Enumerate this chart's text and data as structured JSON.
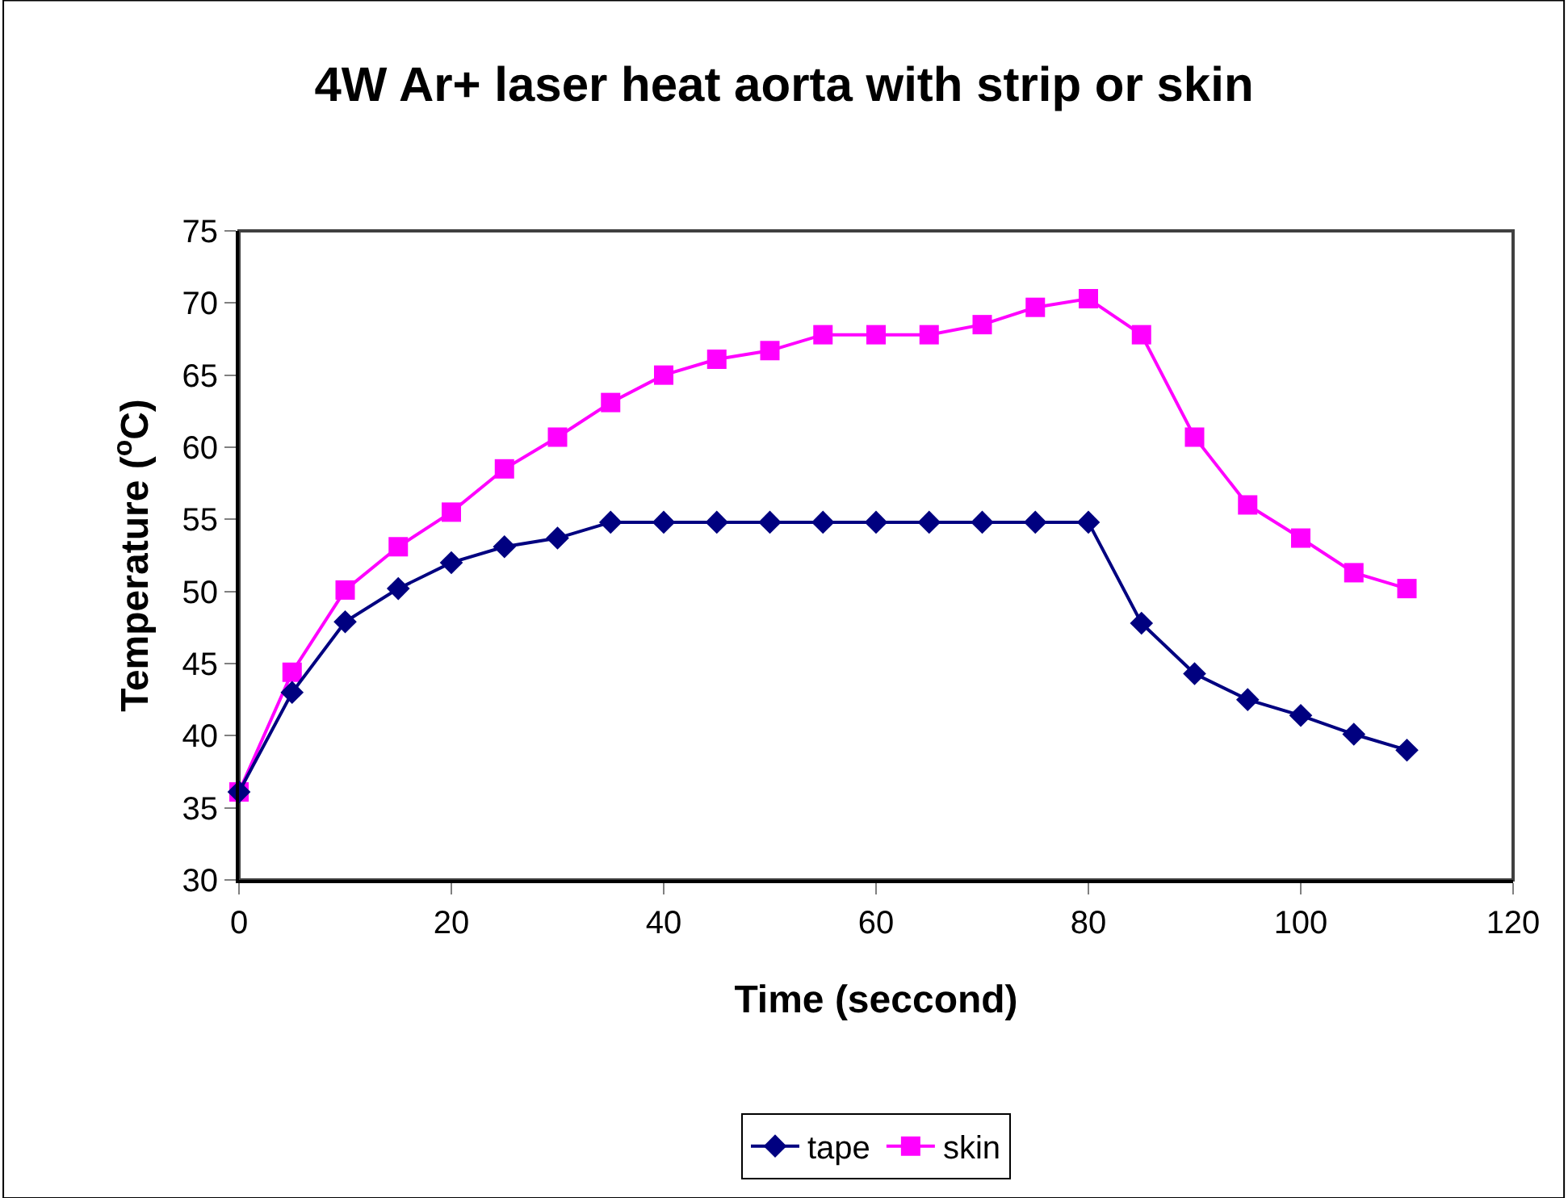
{
  "chart_data": {
    "type": "line",
    "title": "4W Ar+ laser heat aorta with strip or skin",
    "xlabel": "Time (seccond)",
    "ylabel": "Temperature ($^{o}$C)",
    "x": [
      0,
      5,
      10,
      15,
      20,
      25,
      30,
      35,
      40,
      45,
      50,
      55,
      60,
      65,
      70,
      75,
      80,
      85,
      90,
      95,
      100,
      105,
      110
    ],
    "series": [
      {
        "name": "tape",
        "color": "#000080",
        "marker": "diamond",
        "values": [
          36.1,
          43.0,
          47.9,
          50.2,
          52.0,
          53.1,
          53.7,
          54.8,
          54.8,
          54.8,
          54.8,
          54.8,
          54.8,
          54.8,
          54.8,
          54.8,
          54.8,
          47.8,
          44.3,
          42.5,
          41.4,
          40.1,
          39.0
        ]
      },
      {
        "name": "skin",
        "color": "#ff00ff",
        "marker": "square",
        "values": [
          36.1,
          44.4,
          50.1,
          53.1,
          55.5,
          58.5,
          60.7,
          63.1,
          65.0,
          66.1,
          66.7,
          67.8,
          67.8,
          67.8,
          68.5,
          69.7,
          70.3,
          67.8,
          60.7,
          56.0,
          53.7,
          51.3,
          50.2
        ]
      }
    ],
    "xlim": [
      0,
      120
    ],
    "xticks": [
      0,
      20,
      40,
      60,
      80,
      100,
      120
    ],
    "ylim": [
      30,
      75
    ],
    "yticks": [
      30,
      35,
      40,
      45,
      50,
      55,
      60,
      65,
      70,
      75
    ],
    "grid": false,
    "legend": "bottom",
    "line_style": "solid"
  }
}
